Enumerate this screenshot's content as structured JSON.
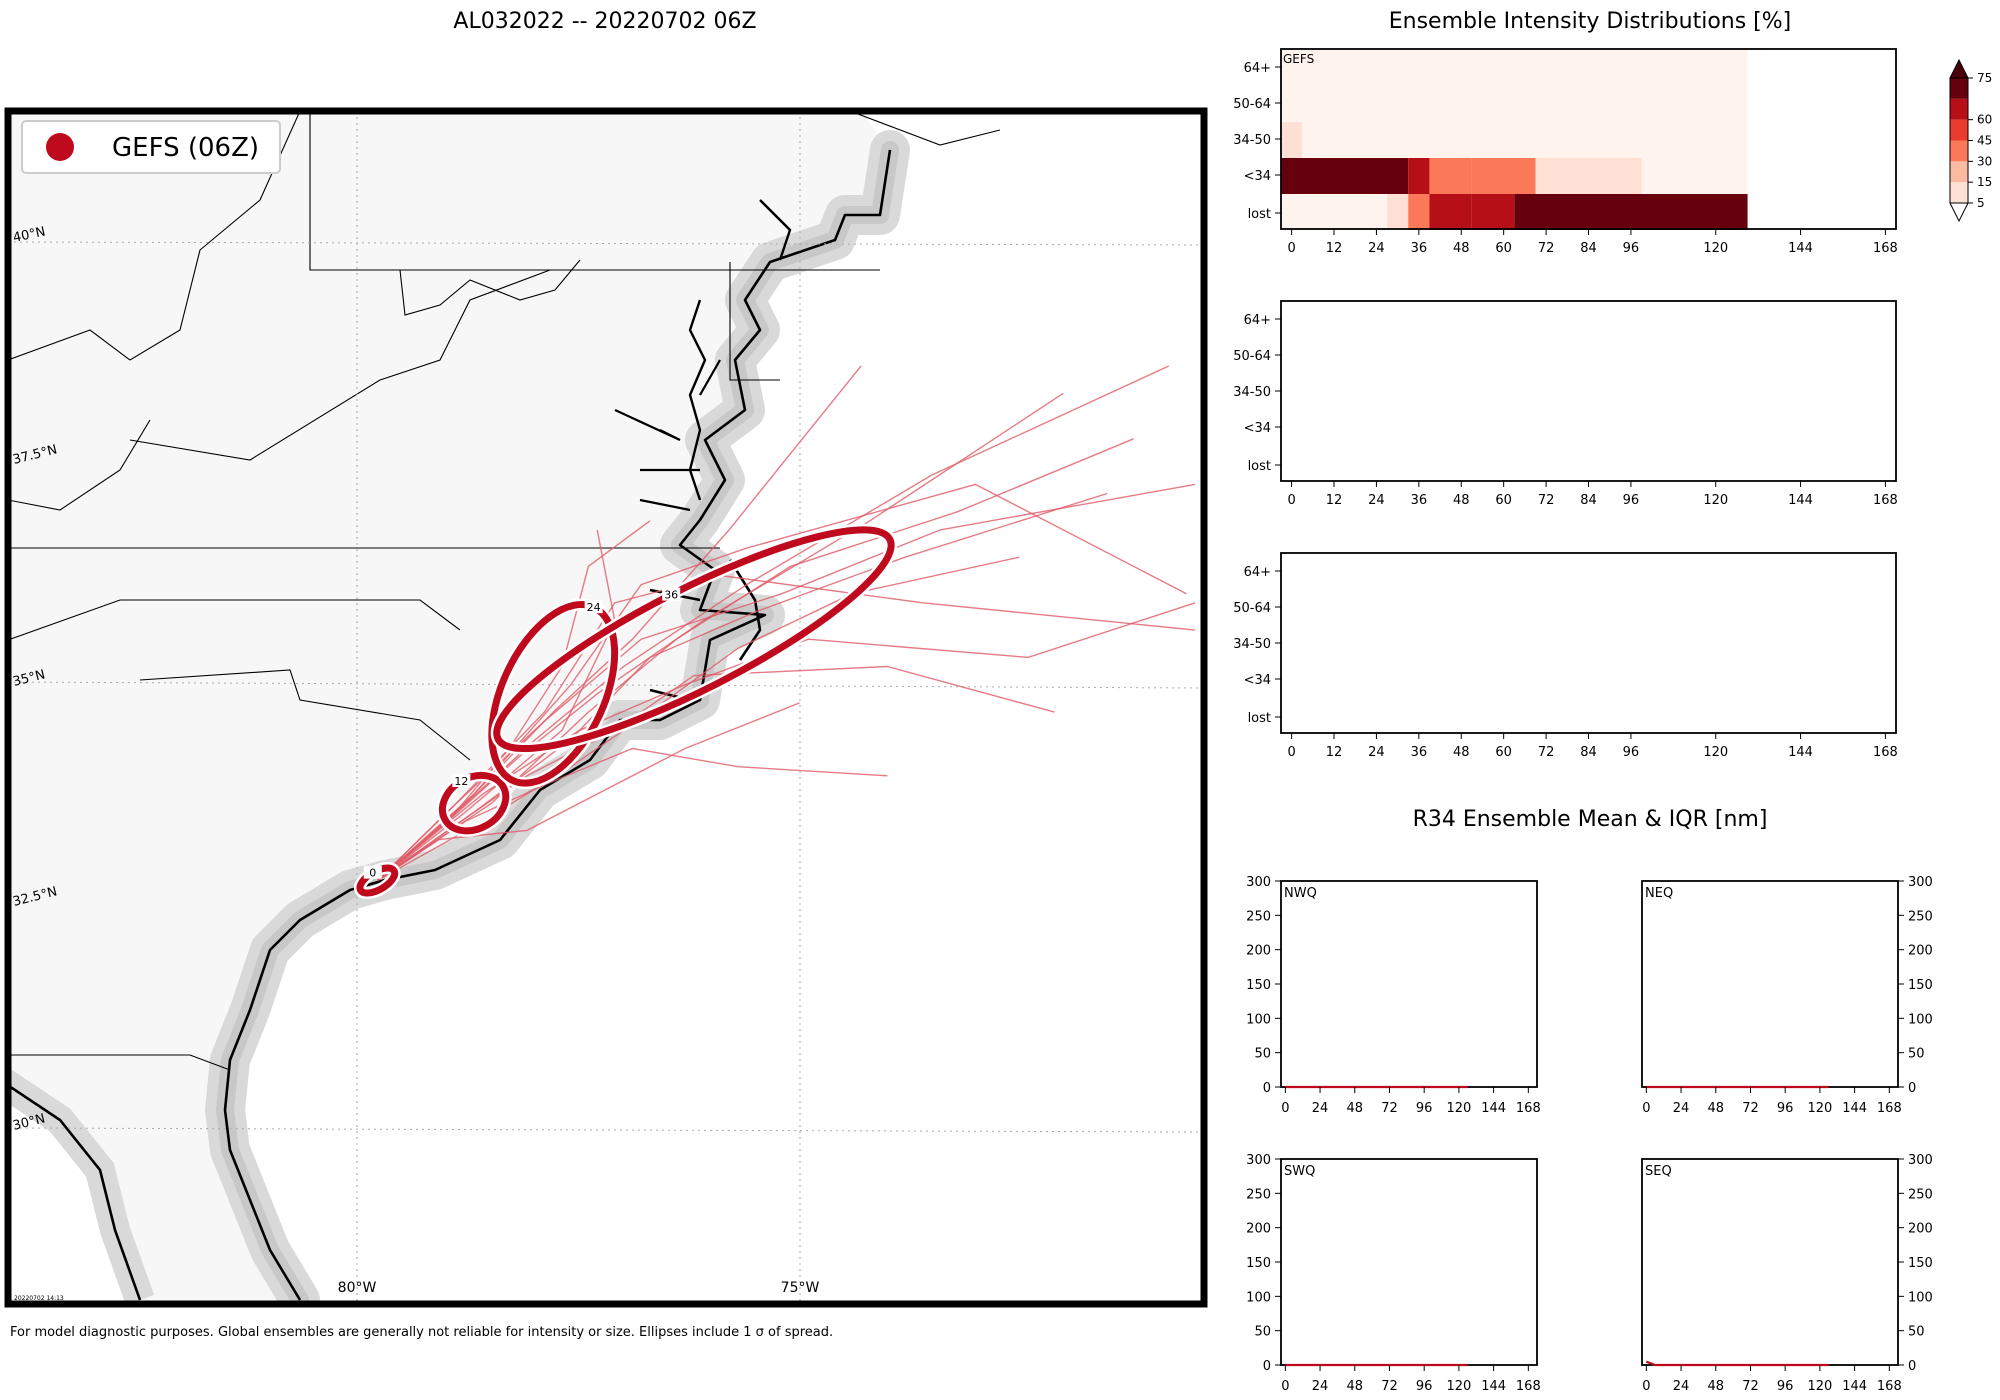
{
  "title": "AL032022 -- 20220702 06Z",
  "footnote": "For model diagnostic purposes. Global ensembles are generally not reliable for intensity or size. Ellipses include 1 σ of spread.",
  "timestamp": "20220702 14:13",
  "colors": {
    "track": "#e05a66",
    "ellipse": "#bf0a1e",
    "land": "#f7f7f7",
    "coast_halo": "#cfcfcf",
    "scale": [
      "#fee1d4",
      "#fcbba1",
      "#fb7858",
      "#e93b2e",
      "#b70f18",
      "#67000d"
    ]
  },
  "map": {
    "legend_label": "GEFS (06Z)",
    "lat_labels": [
      "40°N",
      "37.5°N",
      "35°N",
      "32.5°N",
      "30°N"
    ],
    "lon_labels": [
      "80°W",
      "75°W"
    ],
    "lon_range": [
      -84,
      -70.4
    ],
    "lat_range": [
      28.3,
      41.4
    ],
    "ellipses": [
      {
        "hour": "0",
        "lon": -79.8,
        "lat": 32.95,
        "ax": 0.22,
        "ay": 0.1,
        "rot": -30
      },
      {
        "hour": "12",
        "lon": -78.7,
        "lat": 33.8,
        "ax": 0.38,
        "ay": 0.28,
        "rot": -30
      },
      {
        "hour": "24",
        "lon": -77.8,
        "lat": 35.0,
        "ax": 0.58,
        "ay": 1.05,
        "rot": 25
      },
      {
        "hour": "36",
        "lon": -76.2,
        "lat": 35.6,
        "ax": 2.5,
        "ay": 0.55,
        "rot": -27
      }
    ],
    "tracks": [
      [
        [
          -79.8,
          32.95
        ],
        [
          -78.9,
          33.7
        ],
        [
          -78.0,
          34.5
        ],
        [
          -77.0,
          35.3
        ],
        [
          -75.6,
          36.2
        ],
        [
          -73.5,
          37.4
        ],
        [
          -70.8,
          38.6
        ]
      ],
      [
        [
          -79.8,
          32.95
        ],
        [
          -79.0,
          33.6
        ],
        [
          -78.2,
          34.3
        ],
        [
          -77.3,
          35.0
        ],
        [
          -76.1,
          35.8
        ],
        [
          -74.2,
          36.9
        ],
        [
          -72.0,
          38.3
        ]
      ],
      [
        [
          -79.8,
          32.95
        ],
        [
          -78.8,
          33.8
        ],
        [
          -77.8,
          34.8
        ],
        [
          -76.9,
          35.6
        ],
        [
          -75.8,
          36.8
        ],
        [
          -74.3,
          38.6
        ]
      ],
      [
        [
          -79.8,
          32.95
        ],
        [
          -78.7,
          33.9
        ],
        [
          -77.6,
          35.1
        ],
        [
          -76.8,
          36.2
        ],
        [
          -75.6,
          36.6
        ],
        [
          -73.0,
          37.3
        ],
        [
          -70.6,
          36.1
        ]
      ],
      [
        [
          -79.8,
          32.95
        ],
        [
          -78.9,
          33.8
        ],
        [
          -77.9,
          34.8
        ],
        [
          -77.1,
          36.0
        ],
        [
          -75.9,
          36.3
        ],
        [
          -73.6,
          36.0
        ],
        [
          -70.5,
          35.7
        ]
      ],
      [
        [
          -79.8,
          32.95
        ],
        [
          -79.0,
          33.5
        ],
        [
          -78.1,
          34.1
        ],
        [
          -77.1,
          34.6
        ],
        [
          -76.2,
          35.2
        ],
        [
          -74.0,
          35.3
        ],
        [
          -72.1,
          34.8
        ]
      ],
      [
        [
          -79.8,
          32.95
        ],
        [
          -78.8,
          33.6
        ],
        [
          -77.9,
          34.0
        ],
        [
          -76.9,
          34.4
        ],
        [
          -75.7,
          34.2
        ],
        [
          -74.0,
          34.1
        ]
      ],
      [
        [
          -79.8,
          32.95
        ],
        [
          -78.6,
          33.9
        ],
        [
          -77.5,
          34.6
        ],
        [
          -76.3,
          35.1
        ],
        [
          -74.9,
          35.6
        ],
        [
          -72.4,
          35.4
        ],
        [
          -70.5,
          36.0
        ]
      ],
      [
        [
          -79.8,
          32.95
        ],
        [
          -78.7,
          33.7
        ],
        [
          -77.6,
          34.5
        ],
        [
          -76.7,
          35.4
        ],
        [
          -75.5,
          35.9
        ],
        [
          -73.8,
          36.5
        ],
        [
          -71.5,
          37.2
        ]
      ],
      [
        [
          -79.8,
          32.95
        ],
        [
          -78.8,
          33.7
        ],
        [
          -77.7,
          34.6
        ],
        [
          -77.1,
          35.8
        ],
        [
          -77.3,
          36.8
        ]
      ],
      [
        [
          -79.8,
          32.95
        ],
        [
          -78.5,
          33.8
        ],
        [
          -77.4,
          34.8
        ],
        [
          -76.4,
          35.6
        ],
        [
          -75.1,
          36.4
        ],
        [
          -73.2,
          37.0
        ],
        [
          -71.2,
          37.8
        ]
      ],
      [
        [
          -79.8,
          32.95
        ],
        [
          -79.0,
          33.6
        ],
        [
          -78.3,
          34.4
        ],
        [
          -77.7,
          35.3
        ],
        [
          -77.4,
          36.4
        ],
        [
          -76.7,
          36.9
        ]
      ],
      [
        [
          -79.8,
          32.95
        ],
        [
          -78.9,
          33.8
        ],
        [
          -77.9,
          34.7
        ],
        [
          -76.8,
          35.6
        ],
        [
          -75.2,
          36.1
        ],
        [
          -73.4,
          36.8
        ],
        [
          -70.5,
          37.3
        ]
      ],
      [
        [
          -79.8,
          32.95
        ],
        [
          -78.6,
          33.6
        ],
        [
          -77.6,
          34.2
        ],
        [
          -76.7,
          34.8
        ],
        [
          -75.7,
          35.5
        ],
        [
          -74.4,
          36.1
        ],
        [
          -72.5,
          36.5
        ]
      ],
      [
        [
          -79.8,
          32.95
        ],
        [
          -79.1,
          33.4
        ],
        [
          -78.1,
          33.5
        ],
        [
          -77.3,
          33.9
        ],
        [
          -76.3,
          34.4
        ],
        [
          -75.0,
          34.9
        ]
      ]
    ]
  },
  "intensity": {
    "title": "Ensemble Intensity Distributions [%]",
    "categories": [
      "64+",
      "50-64",
      "34-50",
      "<34",
      "lost"
    ],
    "x_ticks": [
      0,
      12,
      24,
      36,
      48,
      60,
      72,
      84,
      96,
      120,
      144,
      168
    ],
    "x_range": [
      -3,
      171
    ],
    "panel_label": "GEFS",
    "colorbar_ticks": [
      5,
      15,
      30,
      45,
      60,
      75
    ],
    "cells": [
      {
        "row": 0,
        "x0": -3,
        "x1": 129,
        "v": 2
      },
      {
        "row": 1,
        "x0": -3,
        "x1": 129,
        "v": 2
      },
      {
        "row": 2,
        "x0": -3,
        "x1": 3,
        "v": 14
      },
      {
        "row": 2,
        "x0": 3,
        "x1": 129,
        "v": 2
      },
      {
        "row": 3,
        "x0": -3,
        "x1": 33,
        "v": 92
      },
      {
        "row": 3,
        "x0": 33,
        "x1": 39,
        "v": 70
      },
      {
        "row": 3,
        "x0": 39,
        "x1": 51,
        "v": 44
      },
      {
        "row": 3,
        "x0": 51,
        "x1": 69,
        "v": 30
      },
      {
        "row": 3,
        "x0": 69,
        "x1": 99,
        "v": 12
      },
      {
        "row": 3,
        "x0": 99,
        "x1": 129,
        "v": 2
      },
      {
        "row": 4,
        "x0": -3,
        "x1": 27,
        "v": 2
      },
      {
        "row": 4,
        "x0": 27,
        "x1": 33,
        "v": 8
      },
      {
        "row": 4,
        "x0": 33,
        "x1": 39,
        "v": 38
      },
      {
        "row": 4,
        "x0": 39,
        "x1": 51,
        "v": 62
      },
      {
        "row": 4,
        "x0": 51,
        "x1": 63,
        "v": 66
      },
      {
        "row": 4,
        "x0": 63,
        "x1": 129,
        "v": 85
      }
    ]
  },
  "r34": {
    "title": "R34 Ensemble Mean & IQR [nm]",
    "y_ticks": [
      0,
      50,
      100,
      150,
      200,
      250,
      300
    ],
    "x_ticks": [
      0,
      24,
      48,
      72,
      96,
      120,
      144,
      168
    ],
    "y_range": [
      0,
      300
    ],
    "x_range": [
      -3,
      174
    ],
    "panels": [
      {
        "label": "NWQ",
        "mean": [
          [
            0,
            0
          ],
          [
            126,
            0
          ]
        ]
      },
      {
        "label": "NEQ",
        "mean": [
          [
            0,
            0
          ],
          [
            126,
            0
          ]
        ]
      },
      {
        "label": "SWQ",
        "mean": [
          [
            0,
            0
          ],
          [
            126,
            0
          ]
        ]
      },
      {
        "label": "SEQ",
        "mean": [
          [
            0,
            5
          ],
          [
            6,
            0
          ],
          [
            126,
            0
          ]
        ]
      }
    ]
  },
  "chart_data": [
    {
      "type": "heatmap",
      "title": "Ensemble Intensity Distributions [%]",
      "panel": "GEFS",
      "ylabels": [
        "64+",
        "50-64",
        "34-50",
        "<34",
        "lost"
      ],
      "x": [
        0,
        12,
        24,
        36,
        48,
        60,
        72,
        84,
        96,
        120,
        144,
        168
      ],
      "colorbar": [
        5,
        15,
        30,
        45,
        60,
        75
      ]
    },
    {
      "type": "line",
      "title": "R34 Ensemble Mean & IQR [nm]",
      "panels": [
        "NWQ",
        "NEQ",
        "SWQ",
        "SEQ"
      ],
      "ylim": [
        0,
        300
      ],
      "x": [
        0,
        24,
        48,
        72,
        96,
        120,
        144,
        168
      ]
    }
  ]
}
